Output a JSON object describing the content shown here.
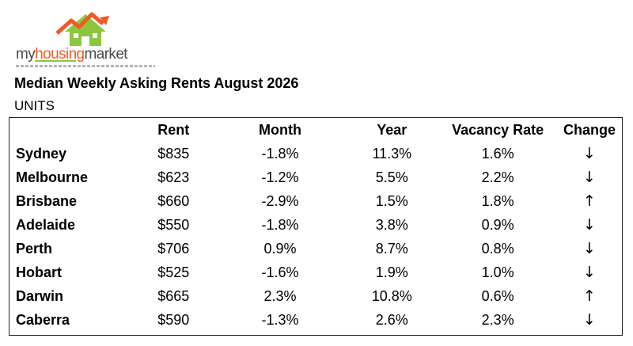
{
  "logo": {
    "part1": "my",
    "part2": "housing",
    "part3": "market",
    "colors": {
      "roof_orange": "#f15a24",
      "roof_green": "#8cc63f",
      "text_gray": "#4a4a4a"
    }
  },
  "title": "Median Weekly Asking Rents August 2026",
  "subtitle": "UNITS",
  "table": {
    "headers": {
      "city": "",
      "rent": "Rent",
      "month": "Month",
      "year": "Year",
      "vacancy": "Vacancy Rate",
      "change": "Change"
    },
    "rows": [
      {
        "city": "Sydney",
        "rent": "$835",
        "month": "-1.8%",
        "year": "11.3%",
        "vacancy": "1.6%",
        "change": "↓"
      },
      {
        "city": "Melbourne",
        "rent": "$623",
        "month": "-1.2%",
        "year": "5.5%",
        "vacancy": "2.2%",
        "change": "↓"
      },
      {
        "city": "Brisbane",
        "rent": "$660",
        "month": "-2.9%",
        "year": "1.5%",
        "vacancy": "1.8%",
        "change": "↑"
      },
      {
        "city": "Adelaide",
        "rent": "$550",
        "month": "-1.8%",
        "year": "3.8%",
        "vacancy": "0.9%",
        "change": "↓"
      },
      {
        "city": "Perth",
        "rent": "$706",
        "month": "0.9%",
        "year": "8.7%",
        "vacancy": "0.8%",
        "change": "↓"
      },
      {
        "city": "Hobart",
        "rent": "$525",
        "month": "-1.6%",
        "year": "1.9%",
        "vacancy": "1.0%",
        "change": "↓"
      },
      {
        "city": "Darwin",
        "rent": "$665",
        "month": "2.3%",
        "year": "10.8%",
        "vacancy": "0.6%",
        "change": "↑"
      },
      {
        "city": "Caberra",
        "rent": "$590",
        "month": "-1.3%",
        "year": "2.6%",
        "vacancy": "2.3%",
        "change": "↓"
      }
    ]
  }
}
